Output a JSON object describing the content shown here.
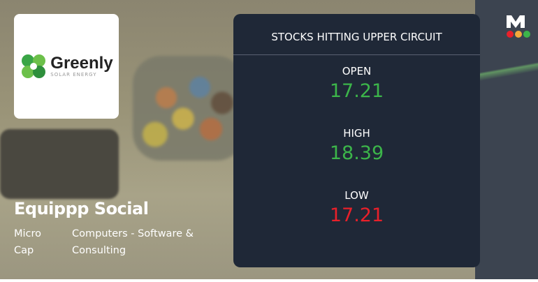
{
  "logo": {
    "name": "Greenly",
    "tagline": "SOLAR ENERGY"
  },
  "company": {
    "name": "Equippp Social",
    "cap": [
      "Micro",
      "Cap"
    ],
    "sector": [
      "Computers - Software &",
      "Consulting"
    ]
  },
  "card": {
    "title": "STOCKS HITTING UPPER CIRCUIT",
    "items": [
      {
        "label": "OPEN",
        "value": "17.21",
        "color": "#3cb54a"
      },
      {
        "label": "HIGH",
        "value": "18.39",
        "color": "#3cb54a"
      },
      {
        "label": "LOW",
        "value": "17.21",
        "color": "#e8202a"
      }
    ]
  },
  "brand": {
    "letter": "M",
    "dots": [
      "#e8202a",
      "#f4a93b",
      "#3cb54a"
    ]
  }
}
